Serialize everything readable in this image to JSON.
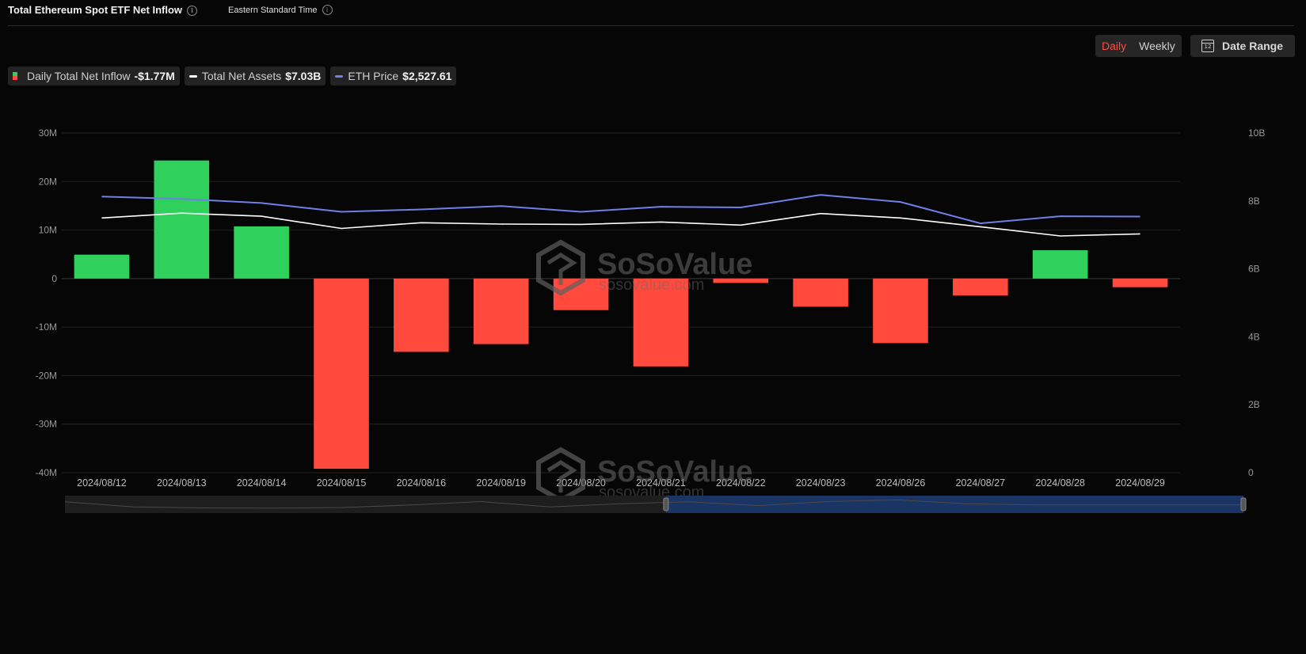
{
  "header": {
    "title": "Total Ethereum Spot ETF Net Inflow",
    "timezone": "Eastern Standard Time"
  },
  "controls": {
    "daily_label": "Daily",
    "weekly_label": "Weekly",
    "date_range_label": "Date Range",
    "calendar_day": "12",
    "active_period": "Daily"
  },
  "legend": [
    {
      "label": "Daily Total Net Inflow",
      "value": "-$1.77M"
    },
    {
      "label": "Total Net Assets",
      "value": "$7.03B"
    },
    {
      "label": "ETH Price",
      "value": "$2,527.61"
    }
  ],
  "watermark": {
    "brand": "SoSoValue",
    "site": "sosovalue.com"
  },
  "colors": {
    "positive": "#2fd15c",
    "negative": "#ff4a3d",
    "total_net_assets": "#ffffff",
    "eth_price": "#6f80e8",
    "active_tab": "#ff4a3d"
  },
  "chart_data": {
    "type": "bar",
    "title": "Total Ethereum Spot ETF Net Inflow",
    "categories": [
      "2024/08/12",
      "2024/08/13",
      "2024/08/14",
      "2024/08/15",
      "2024/08/16",
      "2024/08/19",
      "2024/08/20",
      "2024/08/21",
      "2024/08/22",
      "2024/08/23",
      "2024/08/26",
      "2024/08/27",
      "2024/08/28",
      "2024/08/29"
    ],
    "series": [
      {
        "name": "Daily Total Net Inflow",
        "type": "bar",
        "axis": "left",
        "values": [
          4.93,
          24.34,
          10.76,
          -39.2,
          -15.1,
          -13.5,
          -6.5,
          -18.1,
          -0.9,
          -5.8,
          -13.3,
          -3.5,
          5.84,
          -1.77
        ]
      },
      {
        "name": "Total Net Assets",
        "type": "line",
        "axis": "right",
        "values": [
          7.5,
          7.64,
          7.55,
          7.19,
          7.36,
          7.32,
          7.31,
          7.38,
          7.29,
          7.63,
          7.5,
          7.24,
          6.97,
          7.03
        ]
      },
      {
        "name": "ETH Price",
        "type": "line",
        "axis": "right-scaled",
        "values": [
          8.13,
          8.06,
          7.94,
          7.68,
          7.75,
          7.85,
          7.68,
          7.83,
          7.81,
          8.18,
          7.97,
          7.34,
          7.55,
          7.54
        ]
      }
    ],
    "y_left": {
      "min": -40,
      "max": 30,
      "ticks": [
        30,
        20,
        10,
        0,
        -10,
        -20,
        -30,
        -40
      ],
      "labels": [
        "30M",
        "20M",
        "10M",
        "0",
        "-10M",
        "-20M",
        "-30M",
        "-40M"
      ]
    },
    "y_right": {
      "min": 0,
      "max": 10,
      "ticks": [
        10,
        8,
        6,
        4,
        2,
        0
      ],
      "labels": [
        "10B",
        "8B",
        "6B",
        "4B",
        "2B",
        "0"
      ]
    },
    "grid": true,
    "legend_position": "top-left",
    "overview": {
      "values": [
        0.7,
        0.3,
        0.22,
        0.2,
        0.25,
        0.45,
        0.72,
        0.3,
        0.55,
        0.7,
        0.4,
        0.72,
        0.85,
        0.55,
        0.45,
        0.45,
        0.45,
        0.45
      ],
      "selection_start": 0.51,
      "selection_end": 1.0
    }
  }
}
